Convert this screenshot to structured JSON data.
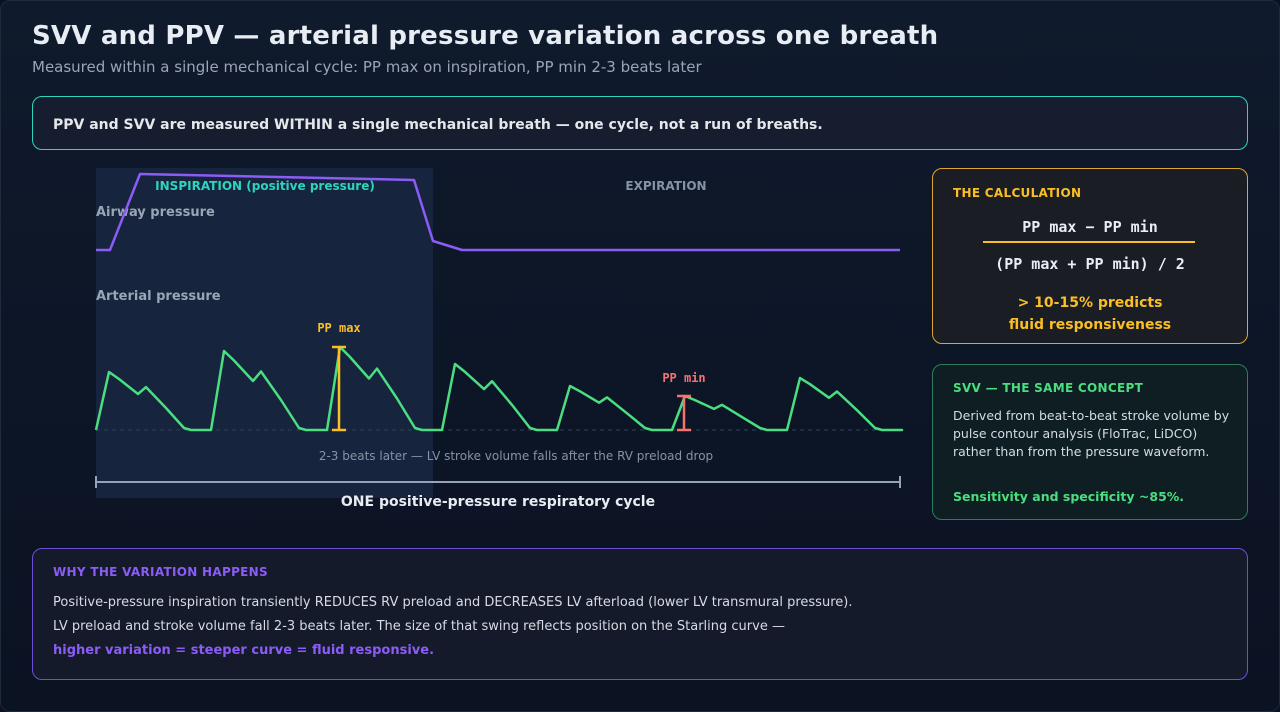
{
  "header": {
    "title": "SVV and PPV — arterial pressure variation across one breath",
    "subtitle": "Measured within a single mechanical cycle: PP max on inspiration, PP min 2-3 beats later"
  },
  "banner": {
    "text": "PPV and SVV are measured WITHIN a single mechanical breath — one cycle, not a run of breaths."
  },
  "diagram": {
    "inspiration_label": "INSPIRATION (positive pressure)",
    "expiration_label": "EXPIRATION",
    "airway_label": "Airway pressure",
    "arterial_label": "Arterial pressure",
    "pp_max_label": "PP max",
    "pp_min_label": "PP min",
    "delay_note": "2-3 beats later — LV stroke volume falls after the RV preload drop",
    "cycle_label": "ONE positive-pressure respiratory cycle"
  },
  "calculation": {
    "heading": "THE CALCULATION",
    "numerator": "PP max − PP min",
    "denominator": "(PP max + PP min) / 2",
    "threshold_line1": "> 10-15% predicts",
    "threshold_line2": "fluid responsiveness"
  },
  "svv": {
    "heading": "SVV — THE SAME CONCEPT",
    "body": "Derived from beat-to-beat stroke volume by pulse contour analysis (FloTrac, LiDCO) rather than from the pressure waveform.",
    "sensitivity": "Sensitivity and specificity ~85%."
  },
  "why": {
    "heading": "WHY THE VARIATION HAPPENS",
    "line1": "Positive-pressure inspiration transiently REDUCES RV preload and DECREASES LV afterload (lower LV transmural pressure).",
    "line2": "LV preload and stroke volume fall 2-3 beats later. The size of that swing reflects position on the Starling curve —",
    "line3": "higher variation = steeper curve = fluid responsive."
  },
  "colors": {
    "teal": "#2dd4bf",
    "amber": "#fbbf24",
    "green": "#4ade80",
    "purple": "#8b5cf6",
    "red": "#f87171"
  }
}
